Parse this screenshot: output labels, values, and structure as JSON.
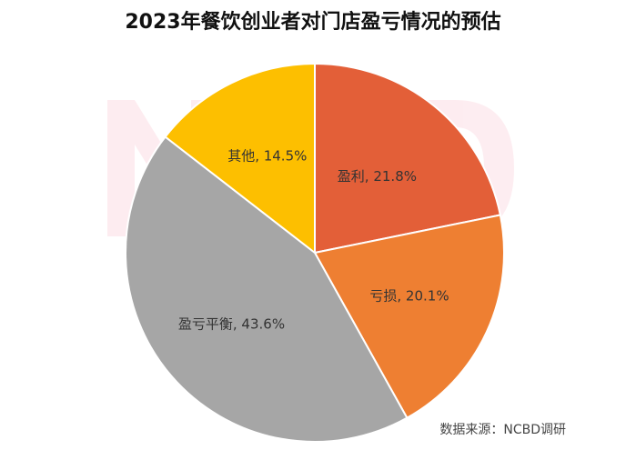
{
  "chart_data": {
    "type": "pie",
    "title": "2023年餐饮创业者对门店盈亏情况的预估",
    "source": "数据来源：NCBD调研",
    "watermark": "NCBD 餐宝典",
    "slices": [
      {
        "label": "盈利",
        "value": 21.8,
        "display": "盈利, 21.8%",
        "color": "#E35F38"
      },
      {
        "label": "亏损",
        "value": 20.1,
        "display": "亏损, 20.1%",
        "color": "#EE7F32"
      },
      {
        "label": "盈亏平衡",
        "value": 43.6,
        "display": "盈亏平衡, 43.6%",
        "color": "#A6A6A6"
      },
      {
        "label": "其他",
        "value": 14.5,
        "display": "其他, 14.5%",
        "color": "#FDBF00"
      }
    ],
    "start_angle_deg": 0,
    "direction": "clockwise",
    "legend": "none"
  }
}
